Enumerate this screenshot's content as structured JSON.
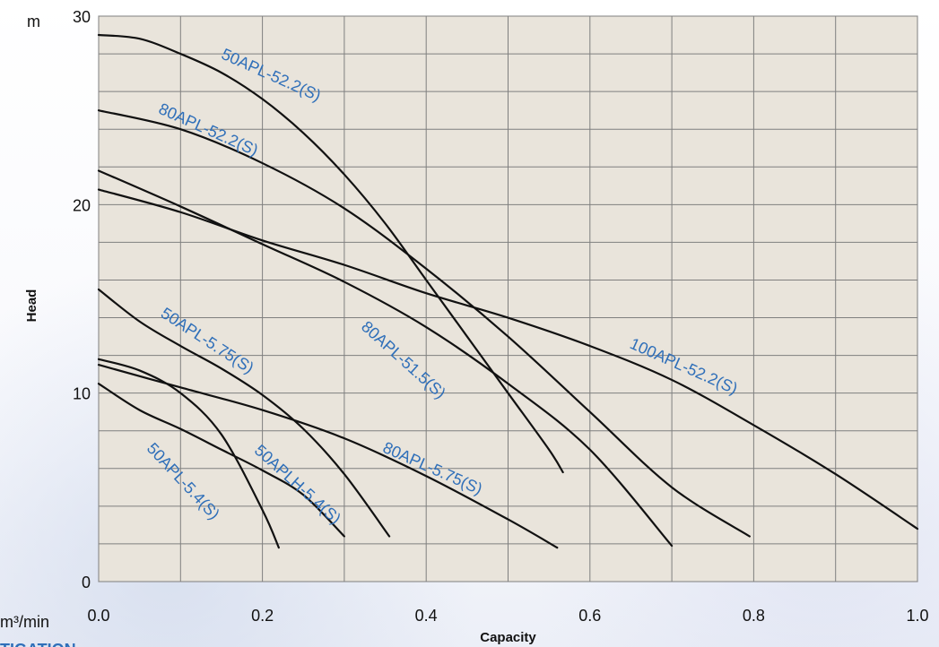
{
  "page_fragment": "TIGATION",
  "chart_data": {
    "type": "line",
    "title": "",
    "xlabel": "Capacity",
    "ylabel": "Head",
    "x_unit": "m³/min",
    "y_unit": "m",
    "xlim": [
      0,
      1.0
    ],
    "ylim": [
      0,
      30
    ],
    "xticks": [
      0.0,
      0.2,
      0.4,
      0.6,
      0.8,
      1.0
    ],
    "xtick_labels": [
      "0.0",
      "0.2",
      "0.4",
      "0.6",
      "0.8",
      "1.0"
    ],
    "yticks": [
      0,
      10,
      20,
      30
    ],
    "ytick_labels": [
      "0",
      "10",
      "20",
      "30"
    ],
    "grid": true,
    "legend": "none",
    "colors": {
      "curve": "#111111",
      "label": "#2f6fb9",
      "plot_bg": "#e9e4db",
      "grid": "#7f7f7f"
    },
    "series": [
      {
        "name": "50APL-52.2(S)",
        "points": [
          [
            0.0,
            29.0
          ],
          [
            0.05,
            28.8
          ],
          [
            0.1,
            28.0
          ],
          [
            0.15,
            27.0
          ],
          [
            0.2,
            25.6
          ],
          [
            0.25,
            23.8
          ],
          [
            0.3,
            21.6
          ],
          [
            0.35,
            19.0
          ],
          [
            0.4,
            16.0
          ],
          [
            0.45,
            13.0
          ],
          [
            0.5,
            10.0
          ],
          [
            0.55,
            7.0
          ],
          [
            0.567,
            5.8
          ]
        ]
      },
      {
        "name": "80APL-52.2(S)",
        "points": [
          [
            0.0,
            25.0
          ],
          [
            0.1,
            24.0
          ],
          [
            0.2,
            22.2
          ],
          [
            0.3,
            19.8
          ],
          [
            0.4,
            16.6
          ],
          [
            0.5,
            13.0
          ],
          [
            0.6,
            9.0
          ],
          [
            0.7,
            5.0
          ],
          [
            0.795,
            2.4
          ]
        ]
      },
      {
        "name": "80APL-51.5(S)",
        "points": [
          [
            0.0,
            21.8
          ],
          [
            0.1,
            19.9
          ],
          [
            0.2,
            17.9
          ],
          [
            0.3,
            15.9
          ],
          [
            0.4,
            13.5
          ],
          [
            0.5,
            10.5
          ],
          [
            0.6,
            7.0
          ],
          [
            0.7,
            1.9
          ]
        ]
      },
      {
        "name": "100APL-52.2(S)",
        "points": [
          [
            0.0,
            20.8
          ],
          [
            0.1,
            19.6
          ],
          [
            0.2,
            18.1
          ],
          [
            0.3,
            16.8
          ],
          [
            0.4,
            15.3
          ],
          [
            0.5,
            14.0
          ],
          [
            0.6,
            12.5
          ],
          [
            0.7,
            10.7
          ],
          [
            0.8,
            8.3
          ],
          [
            0.9,
            5.7
          ],
          [
            1.0,
            2.8
          ]
        ]
      },
      {
        "name": "50APL-5.75(S)",
        "points": [
          [
            0.0,
            15.5
          ],
          [
            0.05,
            13.8
          ],
          [
            0.1,
            12.5
          ],
          [
            0.15,
            11.3
          ],
          [
            0.2,
            9.9
          ],
          [
            0.25,
            8.1
          ],
          [
            0.3,
            5.7
          ],
          [
            0.355,
            2.4
          ]
        ]
      },
      {
        "name": "80APL-5.75(S)",
        "points": [
          [
            0.0,
            11.5
          ],
          [
            0.1,
            10.3
          ],
          [
            0.2,
            9.1
          ],
          [
            0.3,
            7.6
          ],
          [
            0.4,
            5.6
          ],
          [
            0.5,
            3.3
          ],
          [
            0.56,
            1.8
          ]
        ]
      },
      {
        "name": "50APLH-5.4(S)",
        "points": [
          [
            0.0,
            10.5
          ],
          [
            0.05,
            9.1
          ],
          [
            0.1,
            8.1
          ],
          [
            0.15,
            7.0
          ],
          [
            0.2,
            5.9
          ],
          [
            0.25,
            4.6
          ],
          [
            0.3,
            2.4
          ]
        ]
      },
      {
        "name": "50APL-5.4(S)",
        "points": [
          [
            0.0,
            11.8
          ],
          [
            0.05,
            11.2
          ],
          [
            0.1,
            10.0
          ],
          [
            0.15,
            7.8
          ],
          [
            0.2,
            3.8
          ],
          [
            0.22,
            1.8
          ]
        ]
      }
    ]
  }
}
